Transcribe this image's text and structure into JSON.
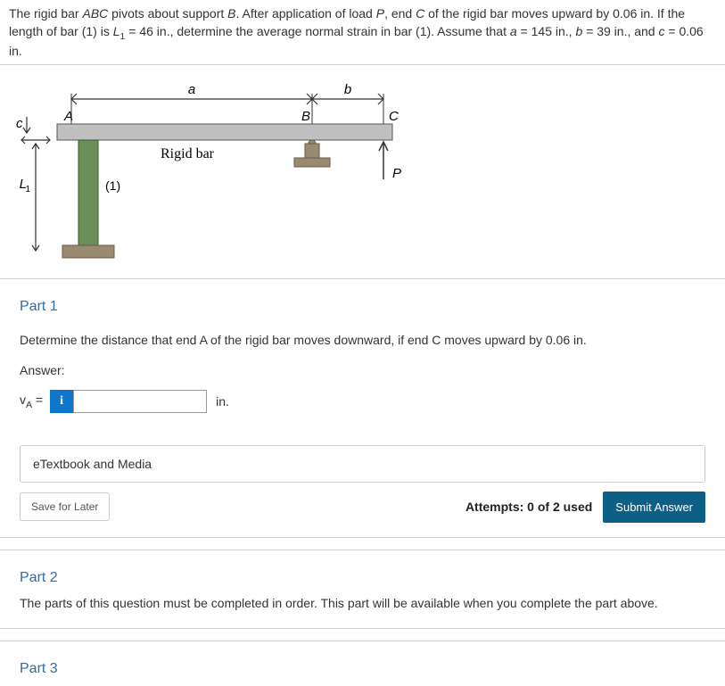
{
  "problem": {
    "text_html": "The rigid bar <span class='ital'>ABC</span> pivots about support <span class='ital'>B</span>. After application of load <span class='ital'>P</span>, end <span class='ital'>C</span> of the rigid bar moves upward by 0.06 in. If the length of bar (1) is <span class='ital'>L</span><span class='sub'>1</span> = 46 in., determine the average normal strain in bar (1). Assume that <span class='ital'>a</span> = 145 in., <span class='ital'>b</span> = 39 in., and <span class='ital'>c</span> = 0.06 in."
  },
  "figure": {
    "labels": {
      "a": "a",
      "b": "b",
      "A": "A",
      "B": "B",
      "C": "C",
      "c": "c",
      "L1": "L",
      "L1_sub": "1",
      "P": "P",
      "one": "(1)",
      "rigid_bar": "Rigid bar"
    },
    "colors": {
      "bar_fill": "#c0c0c0",
      "bar_stroke": "#555",
      "post_fill": "#6b8e5a",
      "post_stroke": "#3a5a2a",
      "base_fill": "#9a8a72",
      "support_fill": "#9a8a72",
      "arrow": "#333",
      "text": "#000"
    }
  },
  "part1": {
    "title": "Part 1",
    "question": "Determine the distance that end A of the rigid bar moves downward, if end C moves upward by 0.06 in.",
    "answer_label": "Answer:",
    "var_html": "v<span class='sub'>A</span> =",
    "info_icon": "i",
    "unit": "in.",
    "etextbook": "eTextbook and Media",
    "save": "Save for Later",
    "attempts": "Attempts: 0 of 2 used",
    "submit": "Submit Answer",
    "input_value": ""
  },
  "part2": {
    "title": "Part 2",
    "locked": "The parts of this question must be completed in order. This part will be available when you complete the part above."
  },
  "part3": {
    "title": "Part 3"
  }
}
